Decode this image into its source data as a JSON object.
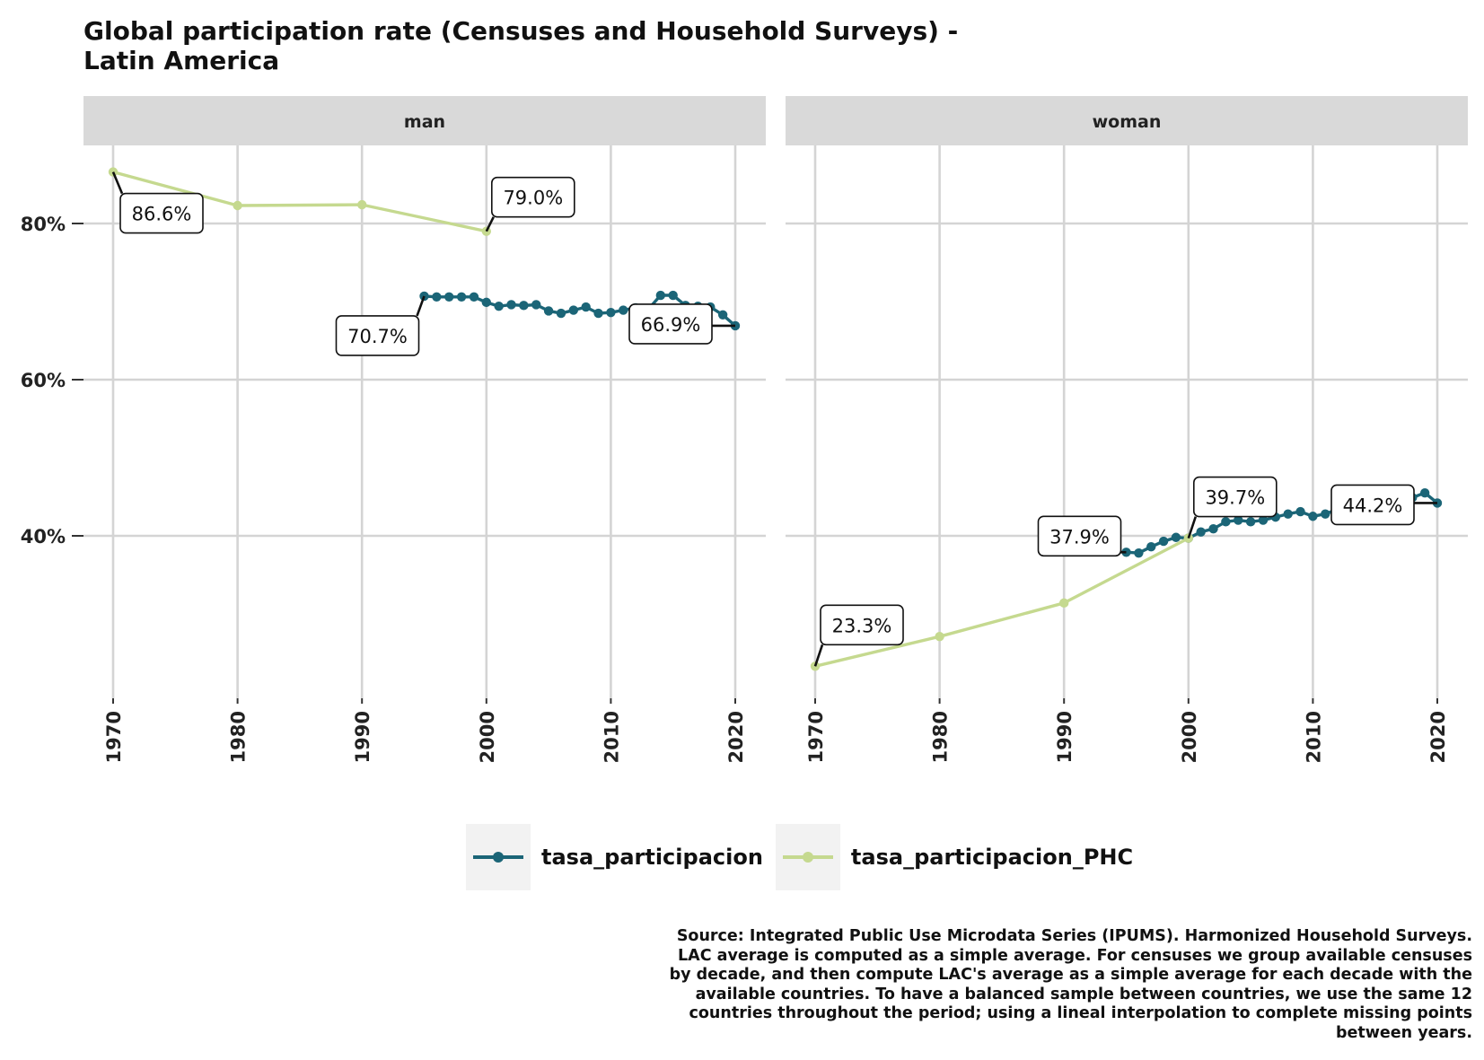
{
  "title": "Global participation rate (Censuses and Household Surveys) - Latin America",
  "caption": "Source: Integrated Public Use Microdata Series (IPUMS). Harmonized Household Surveys. LAC average is computed as a simple average. For censuses we group available censuses by decade, and then compute LAC's average as a simple average for each decade with the available countries. To have a balanced sample between countries, we use the same 12 countries throughout the period; using a lineal interpolation to complete missing points between years.",
  "legend": [
    {
      "name": "tasa_participacion",
      "color": "#1b6577"
    },
    {
      "name": "tasa_participacion_PHC",
      "color": "#c5d98f"
    }
  ],
  "chart_data": {
    "type": "line",
    "title": "Global participation rate (Censuses and Household Surveys) - Latin America",
    "facets": [
      "man",
      "woman"
    ],
    "xlim": [
      1967.5,
      2022
    ],
    "ylim": [
      20,
      90
    ],
    "x_ticks": [
      "1970",
      "1980",
      "1990",
      "2000",
      "2010",
      "2020"
    ],
    "y_ticks": [
      {
        "value": 40,
        "label": "40%"
      },
      {
        "value": 60,
        "label": "60%"
      },
      {
        "value": 80,
        "label": "80%"
      }
    ],
    "grid": true,
    "legend_position": "bottom",
    "panels": [
      {
        "facet": "man",
        "series": [
          {
            "name": "tasa_participacion",
            "color": "#1b6577",
            "x": [
              1995,
              1996,
              1997,
              1998,
              1999,
              2000,
              2001,
              2002,
              2003,
              2004,
              2005,
              2006,
              2007,
              2008,
              2009,
              2010,
              2011,
              2012,
              2013,
              2014,
              2015,
              2016,
              2017,
              2018,
              2019,
              2020
            ],
            "y": [
              70.7,
              70.6,
              70.6,
              70.6,
              70.6,
              69.9,
              69.4,
              69.6,
              69.5,
              69.6,
              68.8,
              68.5,
              68.9,
              69.3,
              68.5,
              68.6,
              68.9,
              69.2,
              69.0,
              70.8,
              70.8,
              69.5,
              69.4,
              69.3,
              68.3,
              66.9
            ]
          },
          {
            "name": "tasa_participacion_PHC",
            "color": "#c5d98f",
            "x": [
              1970,
              1980,
              1990,
              2000
            ],
            "y": [
              86.6,
              82.3,
              82.4,
              79.0
            ]
          }
        ],
        "annotations": [
          {
            "x": 1970,
            "y": 86.6,
            "label": "86.6%"
          },
          {
            "x": 2000,
            "y": 79.0,
            "label": "79.0%"
          },
          {
            "x": 1995,
            "y": 70.7,
            "label": "70.7%"
          },
          {
            "x": 2020,
            "y": 66.9,
            "label": "66.9%"
          }
        ]
      },
      {
        "facet": "woman",
        "series": [
          {
            "name": "tasa_participacion",
            "color": "#1b6577",
            "x": [
              1995,
              1996,
              1997,
              1998,
              1999,
              2000,
              2001,
              2002,
              2003,
              2004,
              2005,
              2006,
              2007,
              2008,
              2009,
              2010,
              2011,
              2012,
              2013,
              2014,
              2015,
              2016,
              2017,
              2018,
              2019,
              2020
            ],
            "y": [
              37.9,
              37.8,
              38.6,
              39.3,
              39.8,
              39.7,
              40.5,
              40.9,
              41.8,
              42.0,
              41.8,
              42.0,
              42.4,
              42.8,
              43.1,
              42.5,
              42.8,
              43.4,
              43.8,
              44.1,
              44.3,
              44.8,
              44.6,
              44.9,
              45.5,
              44.2
            ]
          },
          {
            "name": "tasa_participacion_PHC",
            "color": "#c5d98f",
            "x": [
              1970,
              1980,
              1990,
              2000
            ],
            "y": [
              23.3,
              27.1,
              31.4,
              39.7
            ]
          }
        ],
        "annotations": [
          {
            "x": 1970,
            "y": 23.3,
            "label": "23.3%"
          },
          {
            "x": 1995,
            "y": 37.9,
            "label": "37.9%"
          },
          {
            "x": 2000,
            "y": 39.7,
            "label": "39.7%"
          },
          {
            "x": 2020,
            "y": 44.2,
            "label": "44.2%"
          }
        ]
      }
    ]
  }
}
